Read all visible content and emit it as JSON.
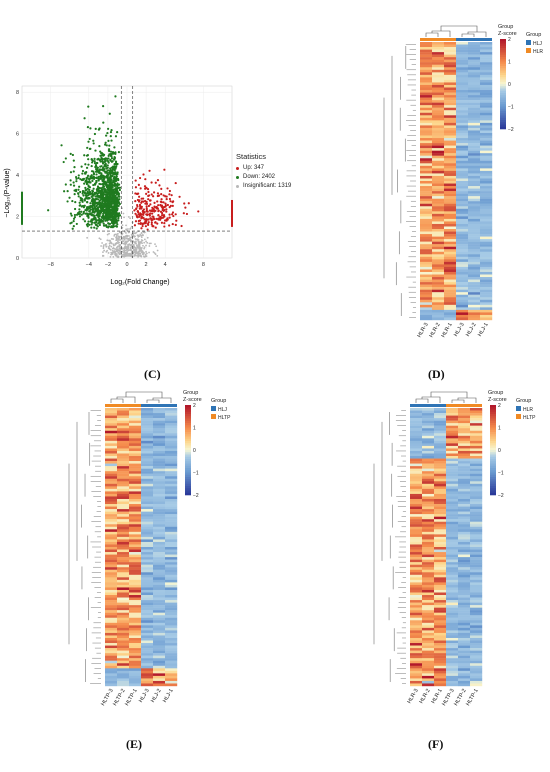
{
  "panels": {
    "C": {
      "label": "(C)"
    },
    "D": {
      "label": "(D)"
    },
    "E": {
      "label": "(E)"
    },
    "F": {
      "label": "(F)"
    }
  },
  "volcano": {
    "xlabel": "Log₂(Fold Change)",
    "ylabel": "−Log₁₀(P-value)",
    "legend_title": "Statistics",
    "legend_items": [
      {
        "label": "Up: 347",
        "color": "#c81e1e"
      },
      {
        "label": "Down: 2402",
        "color": "#1f7a1f"
      },
      {
        "label": "Insignificant: 1319",
        "color": "#b8b8b8"
      }
    ]
  },
  "heatmaps": {
    "D": {
      "samples": [
        "HLR-3",
        "HLR-2",
        "HLR-1",
        "HLJ-3",
        "HLJ-2",
        "HLJ-1"
      ],
      "group_title": "Group",
      "group_legend": [
        {
          "label": "HLJ",
          "color": "#2f74b5"
        },
        {
          "label": "HLR",
          "color": "#f08a24"
        }
      ],
      "zscore_title": "Z-score",
      "zscore_ticks": [
        "2",
        "1",
        "0",
        "−1",
        "−2"
      ]
    },
    "E": {
      "samples": [
        "HLTP-3",
        "HLTP-2",
        "HLTP-1",
        "HLJ-3",
        "HLJ-2",
        "HLJ-1"
      ],
      "group_title": "Group",
      "group_legend": [
        {
          "label": "HLJ",
          "color": "#2f74b5"
        },
        {
          "label": "HLTP",
          "color": "#f08a24"
        }
      ],
      "zscore_title": "Z-score",
      "zscore_ticks": [
        "2",
        "1",
        "0",
        "−1",
        "−2"
      ]
    },
    "F": {
      "samples": [
        "HLR-3",
        "HLR-2",
        "HLR-1",
        "HLTP-3",
        "HLTP-2",
        "HLTP-1"
      ],
      "group_title": "Group",
      "group_legend": [
        {
          "label": "HLR",
          "color": "#2f74b5"
        },
        {
          "label": "HLTP",
          "color": "#f08a24"
        }
      ],
      "zscore_title": "Z-score",
      "zscore_ticks": [
        "2",
        "1",
        "0",
        "−1",
        "−2"
      ]
    }
  },
  "colors": {
    "heat_high": "#b2182b",
    "heat_mid": "#f7f7d4",
    "heat_low": "#2b3a9a",
    "up": "#c81e1e",
    "down": "#1f7a1f",
    "ns": "#b8b8b8"
  }
}
